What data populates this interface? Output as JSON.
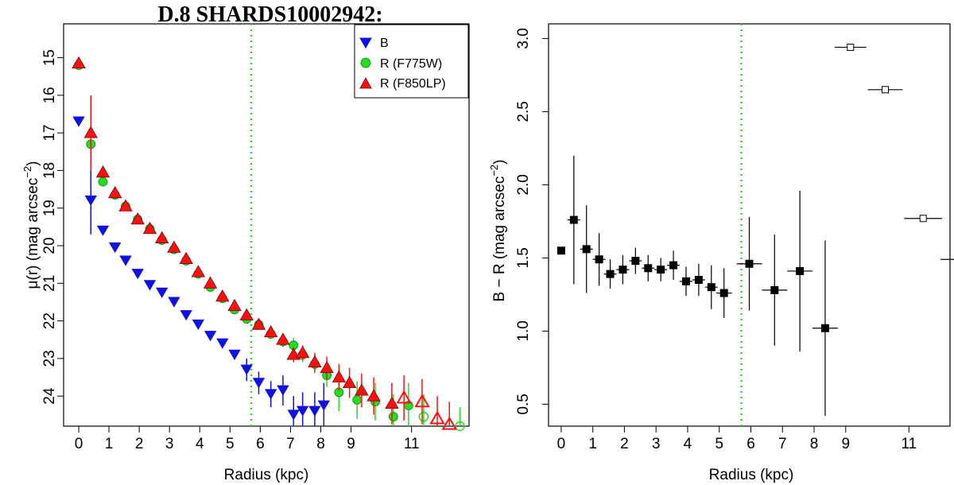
{
  "colors": {
    "B": "#1010e0",
    "R_F775W": "#22dd22",
    "R_F850LP": "#ff1010",
    "color_points": "#000000",
    "break_line": "#22dd22"
  },
  "chart_data": [
    {
      "type": "scatter",
      "title": "D.8 SHARDS10002942:",
      "xlabel": "Radius (kpc)",
      "ylabel": "μ(r) (mag arcsec",
      "ylabel_sup": "−2",
      "ylabel_close": ")",
      "xlim": [
        -0.5,
        12.9
      ],
      "ylim": [
        24.8,
        14.1
      ],
      "y_inverted": true,
      "xticks": [
        "0",
        "1",
        "2",
        "3",
        "4",
        "5",
        "6",
        "7",
        "8",
        "9",
        "11"
      ],
      "xtick_values": [
        0,
        1,
        2,
        3,
        4,
        5,
        6,
        7,
        8,
        9,
        11
      ],
      "yticks": [
        "15",
        "16",
        "17",
        "18",
        "19",
        "20",
        "21",
        "22",
        "23",
        "24"
      ],
      "ytick_values": [
        15,
        16,
        17,
        18,
        19,
        20,
        21,
        22,
        23,
        24
      ],
      "break_radius": 5.7,
      "legend_position": "top-right",
      "legend": [
        "B",
        "R (F775W)",
        "R (F850LP)"
      ],
      "series": [
        {
          "name": "B",
          "marker": "triangle-down",
          "points": [
            {
              "x": 0.0,
              "y": 16.7,
              "err": 0.05
            },
            {
              "x": 0.4,
              "y": 18.8,
              "err": 0.9
            },
            {
              "x": 0.8,
              "y": 19.6,
              "err": 0.1
            },
            {
              "x": 1.2,
              "y": 20.05,
              "err": 0.08
            },
            {
              "x": 1.55,
              "y": 20.4,
              "err": 0.08
            },
            {
              "x": 1.95,
              "y": 20.75,
              "err": 0.08
            },
            {
              "x": 2.35,
              "y": 21.05,
              "err": 0.08
            },
            {
              "x": 2.75,
              "y": 21.25,
              "err": 0.08
            },
            {
              "x": 3.15,
              "y": 21.5,
              "err": 0.08
            },
            {
              "x": 3.55,
              "y": 21.85,
              "err": 0.1
            },
            {
              "x": 3.95,
              "y": 22.1,
              "err": 0.1
            },
            {
              "x": 4.35,
              "y": 22.4,
              "err": 0.1
            },
            {
              "x": 4.75,
              "y": 22.6,
              "err": 0.1
            },
            {
              "x": 5.15,
              "y": 22.9,
              "err": 0.12
            },
            {
              "x": 5.55,
              "y": 23.3,
              "err": 0.3
            },
            {
              "x": 5.95,
              "y": 23.65,
              "err": 0.3
            },
            {
              "x": 6.35,
              "y": 23.95,
              "err": 0.35
            },
            {
              "x": 6.75,
              "y": 23.85,
              "err": 0.4
            },
            {
              "x": 7.1,
              "y": 24.5,
              "err": 0.5
            },
            {
              "x": 7.4,
              "y": 24.4,
              "err": 0.5
            },
            {
              "x": 7.8,
              "y": 24.4,
              "err": 0.5
            },
            {
              "x": 8.1,
              "y": 24.25,
              "err": 0.6
            }
          ]
        },
        {
          "name": "R (F775W)",
          "marker": "circle",
          "points": [
            {
              "x": 0.0,
              "y": 15.2,
              "err": 0.05
            },
            {
              "x": 0.4,
              "y": 17.3,
              "err": 0.3
            },
            {
              "x": 0.8,
              "y": 18.3,
              "err": 0.1
            },
            {
              "x": 1.2,
              "y": 18.65,
              "err": 0.08
            },
            {
              "x": 1.55,
              "y": 18.95,
              "err": 0.05
            },
            {
              "x": 1.95,
              "y": 19.3,
              "err": 0.05
            },
            {
              "x": 2.35,
              "y": 19.55,
              "err": 0.05
            },
            {
              "x": 2.75,
              "y": 19.85,
              "err": 0.05
            },
            {
              "x": 3.15,
              "y": 20.1,
              "err": 0.05
            },
            {
              "x": 3.55,
              "y": 20.4,
              "err": 0.05
            },
            {
              "x": 3.95,
              "y": 20.75,
              "err": 0.05
            },
            {
              "x": 4.35,
              "y": 21.1,
              "err": 0.05
            },
            {
              "x": 4.75,
              "y": 21.4,
              "err": 0.05
            },
            {
              "x": 5.15,
              "y": 21.7,
              "err": 0.08
            },
            {
              "x": 5.55,
              "y": 21.95,
              "err": 0.1
            },
            {
              "x": 5.95,
              "y": 22.1,
              "err": 0.1
            },
            {
              "x": 6.35,
              "y": 22.35,
              "err": 0.12
            },
            {
              "x": 6.75,
              "y": 22.55,
              "err": 0.15
            },
            {
              "x": 7.1,
              "y": 22.65,
              "err": 0.2
            },
            {
              "x": 7.4,
              "y": 22.9,
              "err": 0.2
            },
            {
              "x": 7.8,
              "y": 23.15,
              "err": 0.25
            },
            {
              "x": 8.2,
              "y": 23.45,
              "err": 0.3
            },
            {
              "x": 8.6,
              "y": 23.9,
              "err": 0.5
            },
            {
              "x": 9.2,
              "y": 24.1,
              "err": 0.5
            },
            {
              "x": 9.8,
              "y": 24.15,
              "err": 0.5
            },
            {
              "x": 10.4,
              "y": 24.55,
              "err": 0.6
            },
            {
              "x": 10.9,
              "y": 24.25,
              "err": 0.6
            },
            {
              "x": 11.4,
              "y": 24.55,
              "err": 0.6,
              "open": true
            },
            {
              "x": 12.6,
              "y": 24.8,
              "err": 0.5,
              "open": true
            }
          ]
        },
        {
          "name": "R (F850LP)",
          "marker": "triangle-up",
          "points": [
            {
              "x": 0.0,
              "y": 15.15,
              "err": 0.05
            },
            {
              "x": 0.4,
              "y": 17.0,
              "err": 1.0
            },
            {
              "x": 0.8,
              "y": 18.05,
              "err": 0.1
            },
            {
              "x": 1.2,
              "y": 18.6,
              "err": 0.08
            },
            {
              "x": 1.55,
              "y": 18.95,
              "err": 0.05
            },
            {
              "x": 1.95,
              "y": 19.3,
              "err": 0.05
            },
            {
              "x": 2.35,
              "y": 19.55,
              "err": 0.05
            },
            {
              "x": 2.75,
              "y": 19.8,
              "err": 0.05
            },
            {
              "x": 3.15,
              "y": 20.05,
              "err": 0.05
            },
            {
              "x": 3.55,
              "y": 20.35,
              "err": 0.05
            },
            {
              "x": 3.95,
              "y": 20.7,
              "err": 0.05
            },
            {
              "x": 4.35,
              "y": 21.0,
              "err": 0.05
            },
            {
              "x": 4.75,
              "y": 21.35,
              "err": 0.05
            },
            {
              "x": 5.15,
              "y": 21.6,
              "err": 0.08
            },
            {
              "x": 5.55,
              "y": 21.85,
              "err": 0.1
            },
            {
              "x": 5.95,
              "y": 22.1,
              "err": 0.1
            },
            {
              "x": 6.35,
              "y": 22.3,
              "err": 0.12
            },
            {
              "x": 6.75,
              "y": 22.5,
              "err": 0.15
            },
            {
              "x": 7.1,
              "y": 22.9,
              "err": 0.2
            },
            {
              "x": 7.4,
              "y": 22.85,
              "err": 0.2
            },
            {
              "x": 7.8,
              "y": 23.1,
              "err": 0.25
            },
            {
              "x": 8.2,
              "y": 23.25,
              "err": 0.3
            },
            {
              "x": 8.6,
              "y": 23.5,
              "err": 0.35
            },
            {
              "x": 8.95,
              "y": 23.65,
              "err": 0.4
            },
            {
              "x": 9.35,
              "y": 23.85,
              "err": 0.45
            },
            {
              "x": 9.75,
              "y": 24.0,
              "err": 0.5
            },
            {
              "x": 10.35,
              "y": 24.2,
              "err": 0.55
            },
            {
              "x": 10.75,
              "y": 24.05,
              "err": 0.6,
              "open": true
            },
            {
              "x": 11.35,
              "y": 24.15,
              "err": 0.6,
              "open": true
            },
            {
              "x": 11.85,
              "y": 24.6,
              "err": 0.6,
              "open": true
            },
            {
              "x": 12.25,
              "y": 24.75,
              "err": 0.6,
              "open": true
            }
          ]
        }
      ]
    },
    {
      "type": "scatter",
      "title": "",
      "xlabel": "Radius (kpc)",
      "ylabel": "B − R (mag arcsec",
      "ylabel_sup": "−2",
      "ylabel_close": ")",
      "xlim": [
        -0.4,
        12.3
      ],
      "ylim": [
        0.35,
        3.1
      ],
      "xticks": [
        "0",
        "1",
        "2",
        "3",
        "4",
        "5",
        "6",
        "7",
        "8",
        "9",
        "11"
      ],
      "xtick_values": [
        0,
        1,
        2,
        3,
        4,
        5,
        6,
        7,
        8,
        9,
        11
      ],
      "yticks": [
        "0.5",
        "1.0",
        "1.5",
        "2.0",
        "2.5",
        "3.0"
      ],
      "ytick_values": [
        0.5,
        1.0,
        1.5,
        2.0,
        2.5,
        3.0
      ],
      "break_radius": 5.7,
      "series": [
        {
          "marker": "square",
          "points": [
            {
              "x": 0.0,
              "y": 1.55,
              "xerr": 0.05,
              "yerr": 0.0
            },
            {
              "x": 0.4,
              "y": 1.76,
              "xerr": 0.2,
              "yerr": 0.44
            },
            {
              "x": 0.8,
              "y": 1.56,
              "xerr": 0.2,
              "yerr": 0.3
            },
            {
              "x": 1.2,
              "y": 1.49,
              "xerr": 0.2,
              "yerr": 0.18
            },
            {
              "x": 1.55,
              "y": 1.39,
              "xerr": 0.2,
              "yerr": 0.1
            },
            {
              "x": 1.95,
              "y": 1.42,
              "xerr": 0.2,
              "yerr": 0.1
            },
            {
              "x": 2.35,
              "y": 1.48,
              "xerr": 0.2,
              "yerr": 0.09
            },
            {
              "x": 2.75,
              "y": 1.43,
              "xerr": 0.2,
              "yerr": 0.09
            },
            {
              "x": 3.15,
              "y": 1.42,
              "xerr": 0.2,
              "yerr": 0.08
            },
            {
              "x": 3.55,
              "y": 1.45,
              "xerr": 0.2,
              "yerr": 0.1
            },
            {
              "x": 3.95,
              "y": 1.34,
              "xerr": 0.2,
              "yerr": 0.1
            },
            {
              "x": 4.35,
              "y": 1.35,
              "xerr": 0.2,
              "yerr": 0.11
            },
            {
              "x": 4.75,
              "y": 1.3,
              "xerr": 0.2,
              "yerr": 0.15
            },
            {
              "x": 5.15,
              "y": 1.26,
              "xerr": 0.25,
              "yerr": 0.17
            },
            {
              "x": 5.95,
              "y": 1.46,
              "xerr": 0.4,
              "yerr": 0.32
            },
            {
              "x": 6.75,
              "y": 1.28,
              "xerr": 0.4,
              "yerr": 0.38
            },
            {
              "x": 7.55,
              "y": 1.41,
              "xerr": 0.4,
              "yerr": 0.55
            },
            {
              "x": 8.35,
              "y": 1.02,
              "xerr": 0.4,
              "yerr": 0.6
            },
            {
              "x": 9.15,
              "y": 2.94,
              "xerr": 0.5,
              "yerr": 0.0,
              "open": true
            },
            {
              "x": 10.25,
              "y": 2.65,
              "xerr": 0.55,
              "yerr": 0.0,
              "open": true
            },
            {
              "x": 11.45,
              "y": 1.77,
              "xerr": 0.6,
              "yerr": 0.0,
              "open": true
            },
            {
              "x": 12.6,
              "y": 1.49,
              "xerr": 0.6,
              "yerr": 0.0,
              "open": true
            }
          ]
        }
      ]
    }
  ]
}
